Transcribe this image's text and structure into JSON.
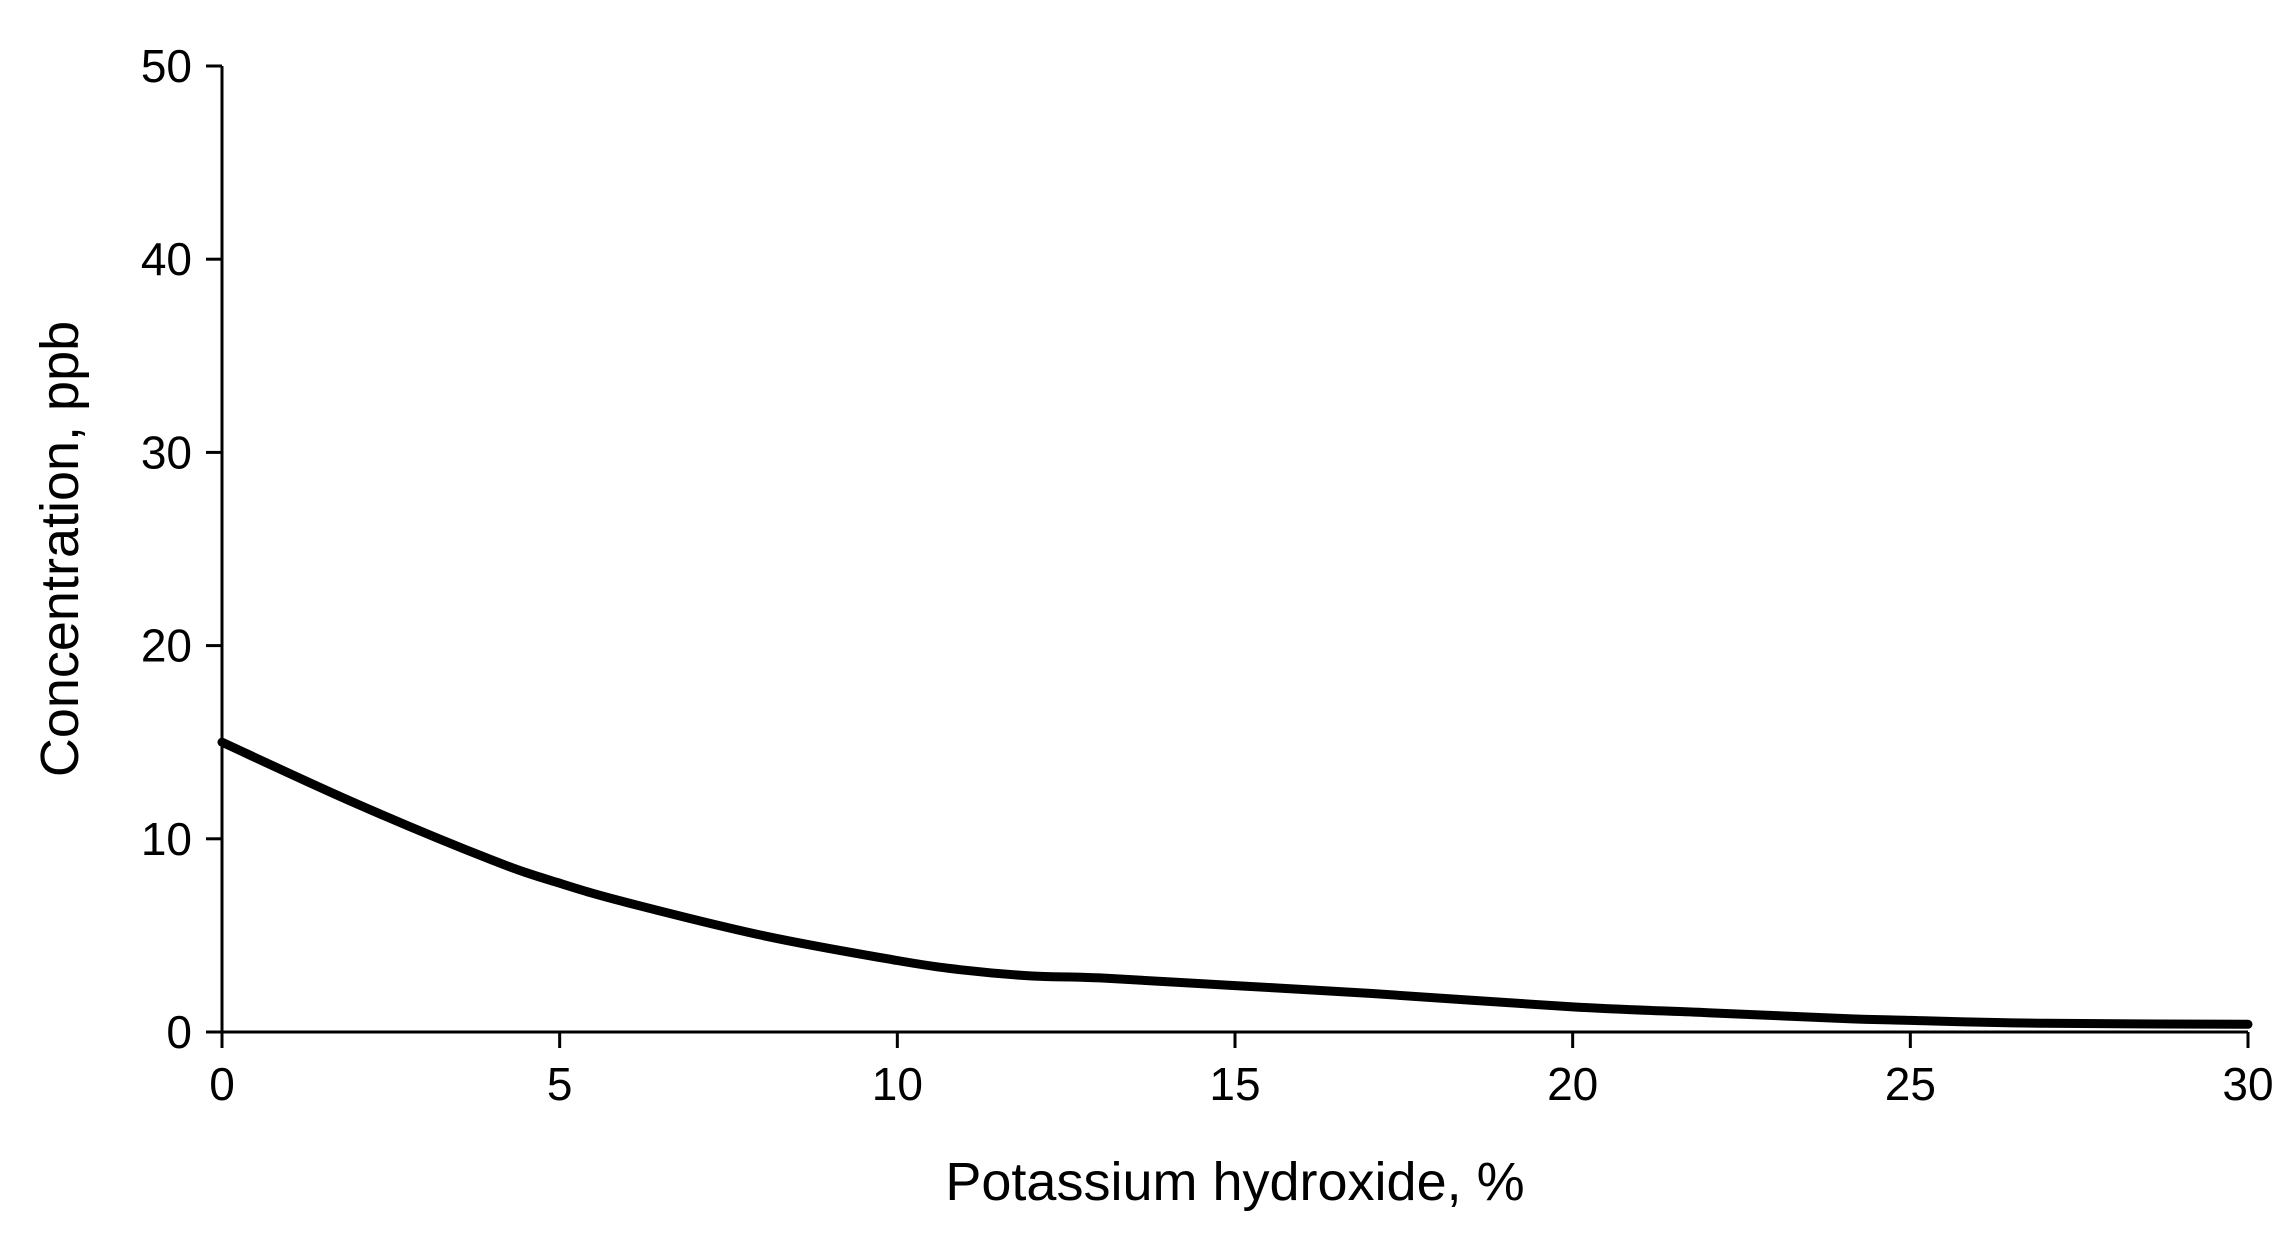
{
  "chart_data": {
    "type": "line",
    "title": "",
    "xlabel": "Potassium hydroxide, %",
    "ylabel": "Concentration, ppb",
    "xlim": [
      0,
      30
    ],
    "ylim": [
      0,
      50
    ],
    "x_ticks": [
      0,
      5,
      10,
      15,
      20,
      25,
      30
    ],
    "y_ticks": [
      0,
      10,
      20,
      30,
      40,
      50
    ],
    "grid": false,
    "legend": "none",
    "series": [
      {
        "color": "#000000",
        "x": [
          0,
          2,
          4,
          5,
          6,
          8,
          10,
          11,
          12,
          13,
          15,
          17,
          20,
          22,
          24,
          25,
          27,
          30
        ],
        "y": [
          15,
          11.8,
          8.9,
          7.7,
          6.7,
          5.0,
          3.7,
          3.2,
          2.9,
          2.8,
          2.4,
          2.0,
          1.3,
          1.0,
          0.7,
          0.6,
          0.45,
          0.4
        ]
      }
    ]
  }
}
